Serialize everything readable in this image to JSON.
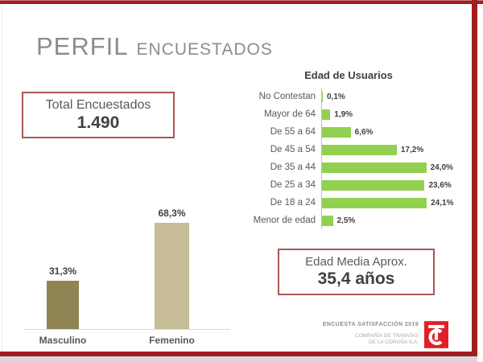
{
  "header": {
    "title_main": "PERFIL",
    "title_sub": "ENCUESTADOS"
  },
  "total_box": {
    "label": "Total  Encuestados",
    "value": "1.490"
  },
  "edad_media_box": {
    "label": "Edad Media Aprox.",
    "value": "35,4 años"
  },
  "footer": {
    "line1": "ENCUESTA SATISFACCIÓN 2019",
    "line2": "COMPAÑÍA DE TRANVÍAS",
    "line3": "DE LA CORUÑA S.A.",
    "logo": "tranvias-coruna-logo"
  },
  "colors": {
    "frame_red": "#a21d21",
    "box_border_red": "#a85654",
    "title_gray": "#8c8c8c",
    "text_gray": "#595959",
    "text_dark": "#404040",
    "green_bar": "#92d050",
    "masculino_bar": "#8f8454",
    "femenino_bar": "#c6bd98",
    "axis_gray": "#bfbfbf",
    "logo_red": "#e01f26"
  },
  "chart_data": [
    {
      "type": "bar",
      "orientation": "vertical",
      "title": "",
      "categories": [
        "Masculino",
        "Femenino"
      ],
      "values": [
        31.3,
        68.3
      ],
      "value_labels": [
        "31,3%",
        "68,3%"
      ],
      "bar_colors": [
        "#8f8454",
        "#c6bd98"
      ],
      "ylim": [
        0,
        80
      ],
      "grid": false,
      "legend": "none"
    },
    {
      "type": "bar",
      "orientation": "horizontal",
      "title": "Edad de Usuarios",
      "categories": [
        "No Contestan",
        "Mayor de 64",
        "De 55 a 64",
        "De 45 a 54",
        "De 35 a 44",
        "De 25 a 34",
        "De 18 a 24",
        "Menor de edad"
      ],
      "values": [
        0.1,
        1.9,
        6.6,
        17.2,
        24.0,
        23.6,
        24.1,
        2.5
      ],
      "value_labels": [
        "0,1%",
        "1,9%",
        "6,6%",
        "17,2%",
        "24,0%",
        "23,6%",
        "24,1%",
        "2,5%"
      ],
      "bar_color": "#92d050",
      "xlim": [
        0,
        30
      ],
      "grid": false,
      "legend": "none"
    }
  ]
}
